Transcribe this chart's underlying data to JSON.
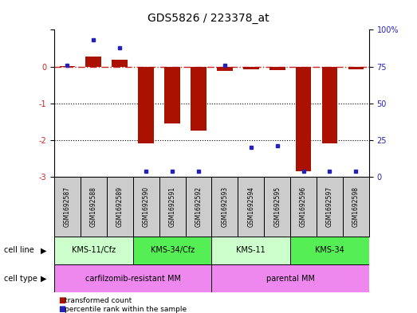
{
  "title": "GDS5826 / 223378_at",
  "samples": [
    "GSM1692587",
    "GSM1692588",
    "GSM1692589",
    "GSM1692590",
    "GSM1692591",
    "GSM1692592",
    "GSM1692593",
    "GSM1692594",
    "GSM1692595",
    "GSM1692596",
    "GSM1692597",
    "GSM1692598"
  ],
  "transformed_count": [
    0.02,
    0.28,
    0.18,
    -2.08,
    -1.55,
    -1.75,
    -0.12,
    -0.08,
    -0.1,
    -2.85,
    -2.1,
    -0.08
  ],
  "percentile_rank": [
    76,
    93,
    88,
    4,
    4,
    4,
    76,
    20,
    21,
    4,
    4,
    4
  ],
  "ylim_left": [
    -3,
    1
  ],
  "ylim_right": [
    0,
    100
  ],
  "yticks_left": [
    -3,
    -2,
    -1,
    0,
    1
  ],
  "yticks_right": [
    0,
    25,
    50,
    75,
    100
  ],
  "cell_line_groups": [
    {
      "label": "KMS-11/Cfz",
      "start": 0,
      "end": 3,
      "color": "#ccffcc"
    },
    {
      "label": "KMS-34/Cfz",
      "start": 3,
      "end": 6,
      "color": "#55ee55"
    },
    {
      "label": "KMS-11",
      "start": 6,
      "end": 9,
      "color": "#ccffcc"
    },
    {
      "label": "KMS-34",
      "start": 9,
      "end": 12,
      "color": "#55ee55"
    }
  ],
  "cell_type_groups": [
    {
      "label": "carfilzomib-resistant MM",
      "start": 0,
      "end": 6,
      "color": "#ee88ee"
    },
    {
      "label": "parental MM",
      "start": 6,
      "end": 12,
      "color": "#ee88ee"
    }
  ],
  "bar_color": "#aa1100",
  "dot_color": "#2222bb",
  "dash_line_color": "#cc2222",
  "dotted_line_color": "#000000",
  "left_tick_color": "#cc2222",
  "right_tick_color": "#2222bb",
  "bg_color": "#ffffff",
  "sample_box_color": "#cccccc",
  "title_fontsize": 10,
  "tick_fontsize": 7,
  "label_fontsize": 7,
  "sample_fontsize": 5.5
}
